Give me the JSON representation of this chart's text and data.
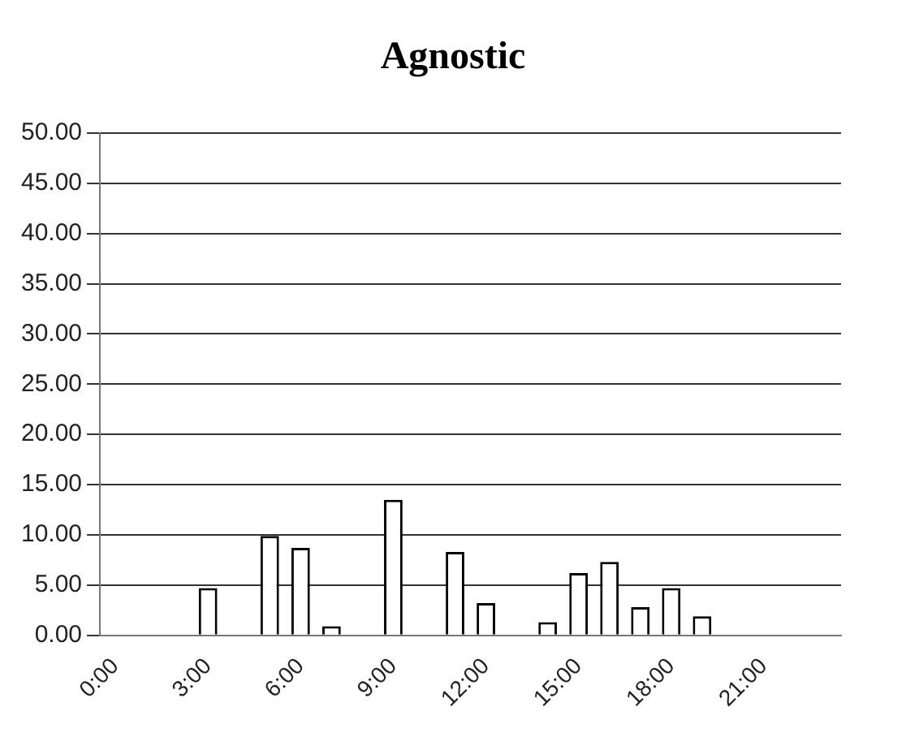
{
  "chart_data": {
    "type": "bar",
    "title": "Agnostic",
    "categories": [
      "0:00",
      null,
      null,
      "3:00",
      null,
      null,
      "6:00",
      null,
      null,
      "9:00",
      null,
      null,
      "12:00",
      null,
      null,
      "15:00",
      null,
      null,
      "18:00",
      null,
      null,
      "21:00",
      null,
      null
    ],
    "values": [
      0,
      0,
      0,
      4.7,
      0,
      9.9,
      8.7,
      0.9,
      0,
      13.5,
      null,
      8.3,
      3.2,
      0,
      1.3,
      6.2,
      7.3,
      2.8,
      4.7,
      1.9,
      0,
      null,
      0,
      0
    ],
    "color": "#ffffff",
    "ylim": [
      0,
      50
    ],
    "yticks": [
      {
        "value": 0,
        "label": "0.00"
      },
      {
        "value": 5,
        "label": "5.00"
      },
      {
        "value": 10,
        "label": "10.00"
      },
      {
        "value": 15,
        "label": "15.00"
      },
      {
        "value": 20,
        "label": "20.00"
      },
      {
        "value": 25,
        "label": "25.00"
      },
      {
        "value": 30,
        "label": "30.00"
      },
      {
        "value": 35,
        "label": "35.00"
      },
      {
        "value": 40,
        "label": "40.00"
      },
      {
        "value": 45,
        "label": "45.00"
      },
      {
        "value": 50,
        "label": "50.00"
      }
    ],
    "grid": "y",
    "legend": false
  }
}
